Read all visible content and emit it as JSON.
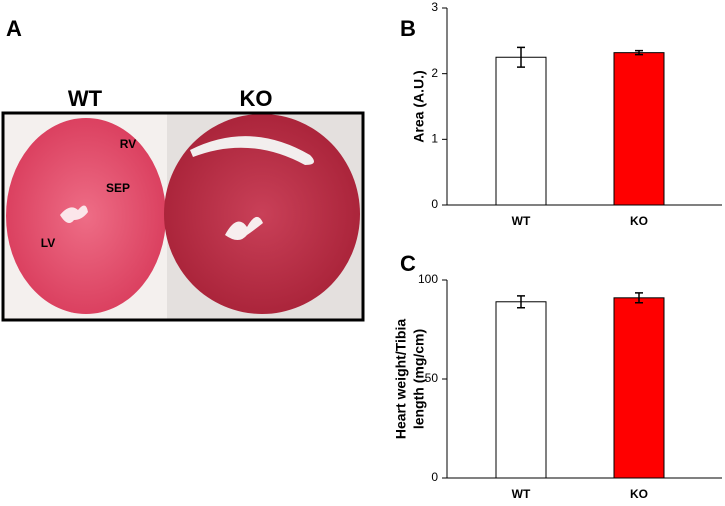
{
  "figure": {
    "panel_label": "A",
    "columns": [
      "WT",
      "KO"
    ],
    "annotations": [
      "RV",
      "SEP",
      "LV"
    ]
  },
  "chart_data": [
    {
      "type": "bar",
      "panel_label": "B",
      "ylabel": [
        "Area (A.U.)"
      ],
      "categories": [
        "WT",
        "KO"
      ],
      "values": [
        2.25,
        2.32
      ],
      "errors": [
        0.15,
        0.03
      ],
      "colors": [
        "#ffffff",
        "#ff0000"
      ],
      "ylim": [
        0,
        3
      ],
      "yticks": [
        0,
        1,
        2,
        3
      ]
    },
    {
      "type": "bar",
      "panel_label": "C",
      "ylabel": [
        "Heart weight/Tibia",
        "length (mg/cm)"
      ],
      "categories": [
        "WT",
        "KO"
      ],
      "values": [
        89,
        91
      ],
      "errors": [
        3,
        2.5
      ],
      "colors": [
        "#ffffff",
        "#ff0000"
      ],
      "ylim": [
        0,
        100
      ],
      "yticks": [
        0,
        50,
        100
      ]
    }
  ]
}
